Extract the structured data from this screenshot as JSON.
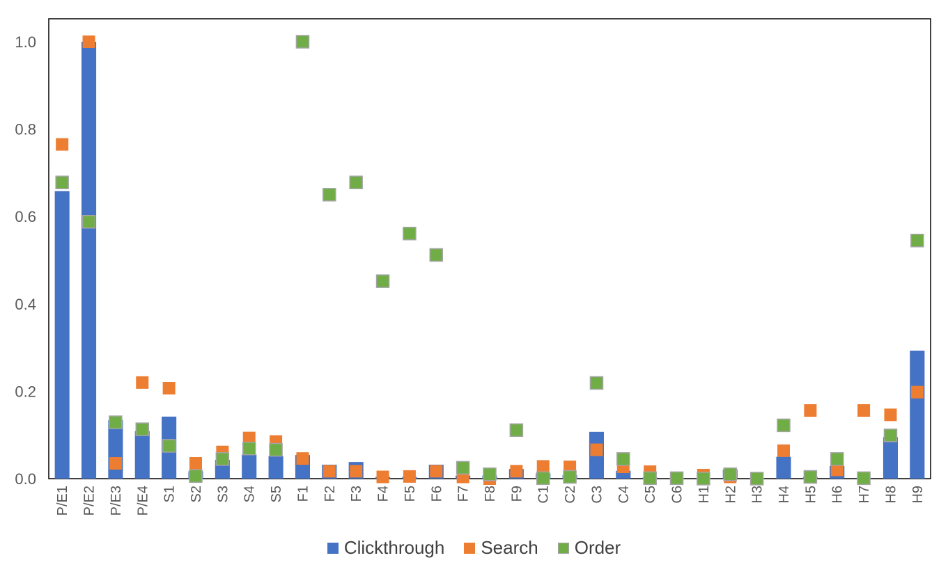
{
  "chart_data": {
    "type": "bar",
    "bar_mode": "overlay",
    "categories": [
      "P/E1",
      "P/E2",
      "P/E3",
      "P/E4",
      "S1",
      "S2",
      "S3",
      "S4",
      "S5",
      "F1",
      "F2",
      "F3",
      "F4",
      "F5",
      "F6",
      "F7",
      "F8",
      "F9",
      "C1",
      "C2",
      "C3",
      "C4",
      "C5",
      "C6",
      "H1",
      "H2",
      "H3",
      "H4",
      "H5",
      "H6",
      "H7",
      "H8",
      "H9"
    ],
    "series": [
      {
        "name": "Clickthrough",
        "type": "bar",
        "color": "#4472C4",
        "values": [
          0.658,
          1.0,
          0.134,
          0.109,
          0.142,
          0.017,
          0.043,
          0.055,
          0.052,
          0.054,
          0.032,
          0.038,
          0.004,
          0.004,
          0.032,
          0.007,
          0.007,
          0.022,
          0.012,
          0.008,
          0.107,
          0.018,
          0.003,
          0.001,
          0.001,
          0.021,
          0.001,
          0.05,
          0.004,
          0.029,
          0.002,
          0.095,
          0.293
        ]
      },
      {
        "name": "Search",
        "type": "marker",
        "color": "#ED7D31",
        "values": [
          0.765,
          1.0,
          0.035,
          0.22,
          0.207,
          0.035,
          0.061,
          0.093,
          0.085,
          0.046,
          0.017,
          0.017,
          0.004,
          0.005,
          0.017,
          0.004,
          0.0,
          0.017,
          0.028,
          0.027,
          0.066,
          0.027,
          0.016,
          0.001,
          0.008,
          0.004,
          0.001,
          0.064,
          0.156,
          0.02,
          0.156,
          0.146,
          0.198
        ]
      },
      {
        "name": "Order",
        "type": "marker",
        "color": "#70AD47",
        "values": [
          0.678,
          0.588,
          0.129,
          0.113,
          0.075,
          0.006,
          0.045,
          0.069,
          0.066,
          1.0,
          0.65,
          0.678,
          0.452,
          0.561,
          0.512,
          0.025,
          0.01,
          0.111,
          0.001,
          0.004,
          0.219,
          0.045,
          0.001,
          0.001,
          0.0,
          0.01,
          0.0,
          0.122,
          0.004,
          0.045,
          0.001,
          0.099,
          0.545
        ]
      }
    ],
    "ylim": [
      0,
      1.0
    ],
    "yticks": [
      "0.0",
      "0.2",
      "0.4",
      "0.6",
      "0.8",
      "1.0"
    ],
    "title": "",
    "xlabel": "",
    "ylabel": "",
    "grid": false,
    "legend_position": "bottom"
  }
}
